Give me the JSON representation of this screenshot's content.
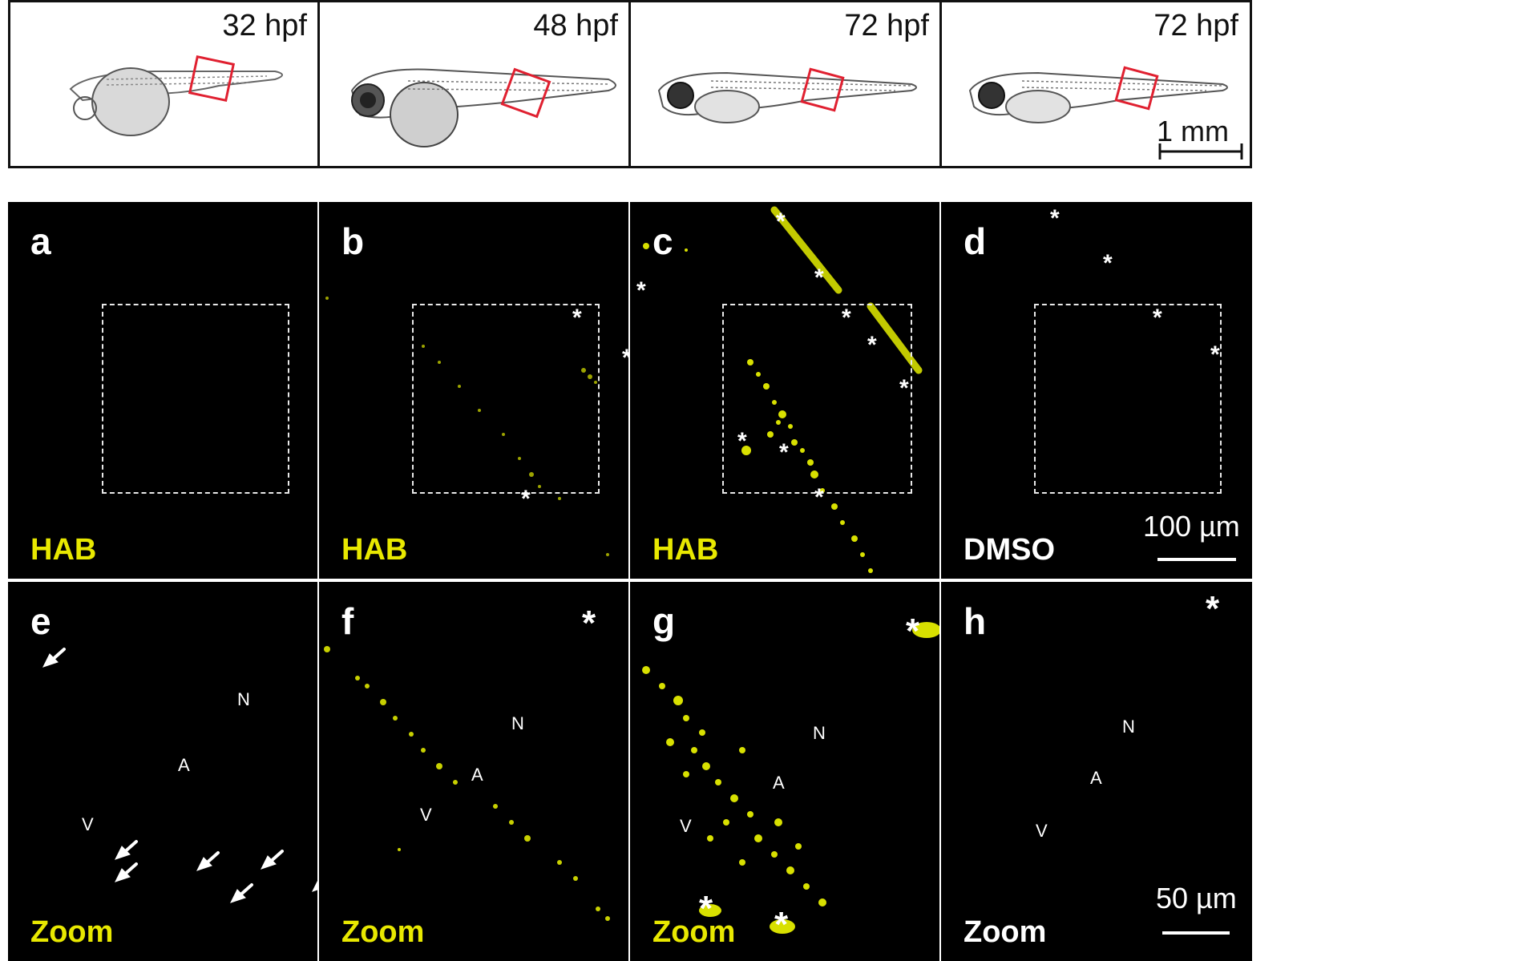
{
  "top_row": [
    {
      "stage": "32 hpf"
    },
    {
      "stage": "48 hpf"
    },
    {
      "stage": "72 hpf"
    },
    {
      "stage": "72 hpf",
      "scale_label": "1 mm"
    }
  ],
  "middle_row": [
    {
      "letter": "a",
      "condition": "HAB"
    },
    {
      "letter": "b",
      "condition": "HAB"
    },
    {
      "letter": "c",
      "condition": "HAB"
    },
    {
      "letter": "d",
      "condition": "DMSO",
      "scale_label": "100 µm"
    }
  ],
  "bottom_row": [
    {
      "letter": "e",
      "condition": "Zoom",
      "labels": {
        "n": "N",
        "a": "A",
        "v": "V"
      }
    },
    {
      "letter": "f",
      "condition": "Zoom",
      "labels": {
        "n": "N",
        "a": "A",
        "v": "V"
      }
    },
    {
      "letter": "g",
      "condition": "Zoom",
      "labels": {
        "n": "N",
        "a": "A",
        "v": "V"
      }
    },
    {
      "letter": "h",
      "condition": "Zoom",
      "labels": {
        "n": "N",
        "a": "A",
        "v": "V"
      },
      "scale_label": "50 µm"
    }
  ],
  "colors": {
    "hab_label": "#e8e800",
    "dmso_label": "#ffffff",
    "fluorescence": "#d8e000",
    "roi_box": "#e02030"
  }
}
